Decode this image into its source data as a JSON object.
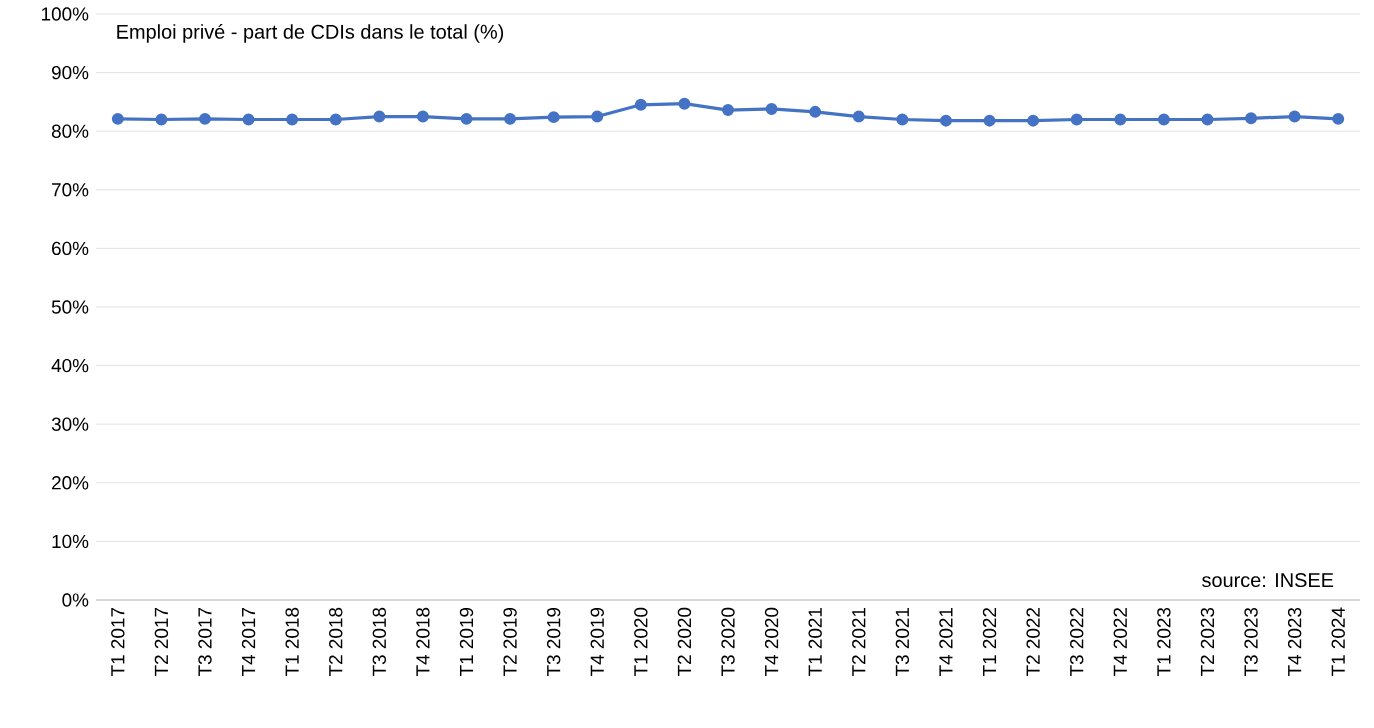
{
  "chart_data": {
    "type": "line",
    "title": "Emploi privé - part de CDIs dans le total (%)",
    "annotations": [
      "source: INSEE"
    ],
    "categories": [
      "T1 2017",
      "T2 2017",
      "T3 2017",
      "T4 2017",
      "T1 2018",
      "T2 2018",
      "T3 2018",
      "T4 2018",
      "T1 2019",
      "T2 2019",
      "T3 2019",
      "T4 2019",
      "T1 2020",
      "T2 2020",
      "T3 2020",
      "T4 2020",
      "T1 2021",
      "T2 2021",
      "T3 2021",
      "T4 2021",
      "T1 2022",
      "T2 2022",
      "T3 2022",
      "T4 2022",
      "T1 2023",
      "T2 2023",
      "T3 2023",
      "T4 2023",
      "T1 2024"
    ],
    "series": [
      {
        "color": "#4472c4",
        "values": [
          82.1,
          82.0,
          82.1,
          82.0,
          82.0,
          82.0,
          82.5,
          82.5,
          82.1,
          82.1,
          82.4,
          82.5,
          84.5,
          84.7,
          83.6,
          83.8,
          83.3,
          82.5,
          82.0,
          81.8,
          81.8,
          81.8,
          82.0,
          82.0,
          82.0,
          82.0,
          82.2,
          82.5,
          82.1
        ]
      }
    ],
    "ylim": [
      0,
      100
    ],
    "yticks": [
      {
        "value": 0,
        "label": "0%"
      },
      {
        "value": 10,
        "label": "10%"
      },
      {
        "value": 20,
        "label": "20%"
      },
      {
        "value": 30,
        "label": "30%"
      },
      {
        "value": 40,
        "label": "40%"
      },
      {
        "value": 50,
        "label": "50%"
      },
      {
        "value": 60,
        "label": "60%"
      },
      {
        "value": 70,
        "label": "70%"
      },
      {
        "value": 80,
        "label": "80%"
      },
      {
        "value": 90,
        "label": "90%"
      },
      {
        "value": 100,
        "label": "100%"
      }
    ],
    "grid": "y",
    "marker": "circle",
    "line_style": "solid"
  }
}
